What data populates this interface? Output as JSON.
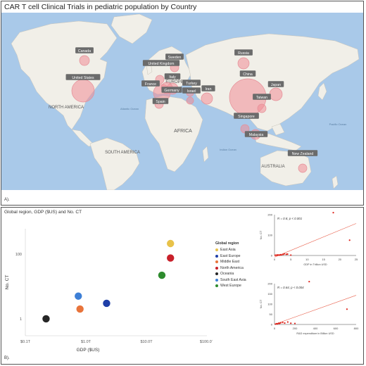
{
  "panel_a": {
    "title": "CAR T cell Clinical Trials in pediatric population by Country",
    "label": "A).",
    "map_labels": [
      "NORTH AMERICA",
      "SOUTH AMERICA",
      "EUROPE",
      "AFRICA",
      "AUSTRALIA",
      "Atlantic Ocean",
      "Indian Ocean",
      "Pacific Ocean"
    ]
  },
  "chart_data": [
    {
      "type": "bubble-map",
      "title": "CAR T cell Clinical Trials in pediatric population by Country",
      "countries": [
        "Canada",
        "United States",
        "United Kingdom",
        "Sweden",
        "Italy",
        "France",
        "Germany",
        "Spain",
        "Turkey",
        "Israel",
        "Iran",
        "Russia",
        "China",
        "Japan",
        "Taiwan",
        "Singapore",
        "Malaysia",
        "New Zealand"
      ]
    },
    {
      "type": "scatter",
      "title": "Global region, GDP ($US) and No. CT",
      "xlabel": "GDP ($US)",
      "ylabel": "No. CT",
      "xscale": "log",
      "yscale": "log",
      "xticks": [
        "$0.1T",
        "$1.0T",
        "$10.0T",
        "$100.0T"
      ],
      "yticks": [
        "1",
        "100"
      ],
      "legend_title": "Global region",
      "legend_position": "right",
      "series": [
        {
          "name": "East Asia",
          "color": "#e8c24a",
          "x": 25,
          "y": 210
        },
        {
          "name": "East Europe",
          "color": "#1f3fa8",
          "x": 2.2,
          "y": 3
        },
        {
          "name": "Middle East",
          "color": "#e8743b",
          "x": 0.8,
          "y": 2
        },
        {
          "name": "North America",
          "color": "#c8202a",
          "x": 25,
          "y": 75
        },
        {
          "name": "Oceania",
          "color": "#262626",
          "x": 0.22,
          "y": 1
        },
        {
          "name": "South East Asia",
          "color": "#3d7fd6",
          "x": 0.75,
          "y": 5
        },
        {
          "name": "West Europe",
          "color": "#2e8b2e",
          "x": 18,
          "y": 22
        }
      ]
    },
    {
      "type": "scatter",
      "annotation": "R = 0.8, p < 0.001",
      "xlabel": "GDP in Trillion USD",
      "ylabel": "No. CT",
      "xlim": [
        0,
        25
      ],
      "ylim": [
        0,
        200
      ],
      "xticks": [
        0,
        5,
        10,
        15,
        20,
        25
      ],
      "yticks": [
        0,
        100,
        200
      ],
      "x": [
        0.2,
        0.5,
        0.8,
        1.0,
        1.3,
        1.6,
        1.8,
        2.1,
        2.6,
        3.0,
        3.6,
        4.0,
        5.0,
        18,
        23
      ],
      "y": [
        1,
        2,
        1,
        3,
        2,
        2,
        4,
        3,
        5,
        8,
        6,
        7,
        2,
        210,
        75
      ]
    },
    {
      "type": "scatter",
      "annotation": "R = 0.64, p < 0.004",
      "xlabel": "R&D expenditure in Billion USD",
      "ylabel": "No. CT",
      "xlim": [
        0,
        800
      ],
      "ylim": [
        0,
        200
      ],
      "xticks": [
        0,
        200,
        400,
        600,
        800
      ],
      "yticks": [
        0,
        50,
        100,
        150,
        200
      ],
      "x": [
        10,
        20,
        30,
        40,
        50,
        60,
        80,
        100,
        130,
        160,
        200,
        340,
        710
      ],
      "y": [
        2,
        4,
        3,
        6,
        5,
        8,
        10,
        7,
        12,
        6,
        5,
        210,
        75
      ]
    }
  ],
  "panel_b": {
    "label": "B)."
  }
}
